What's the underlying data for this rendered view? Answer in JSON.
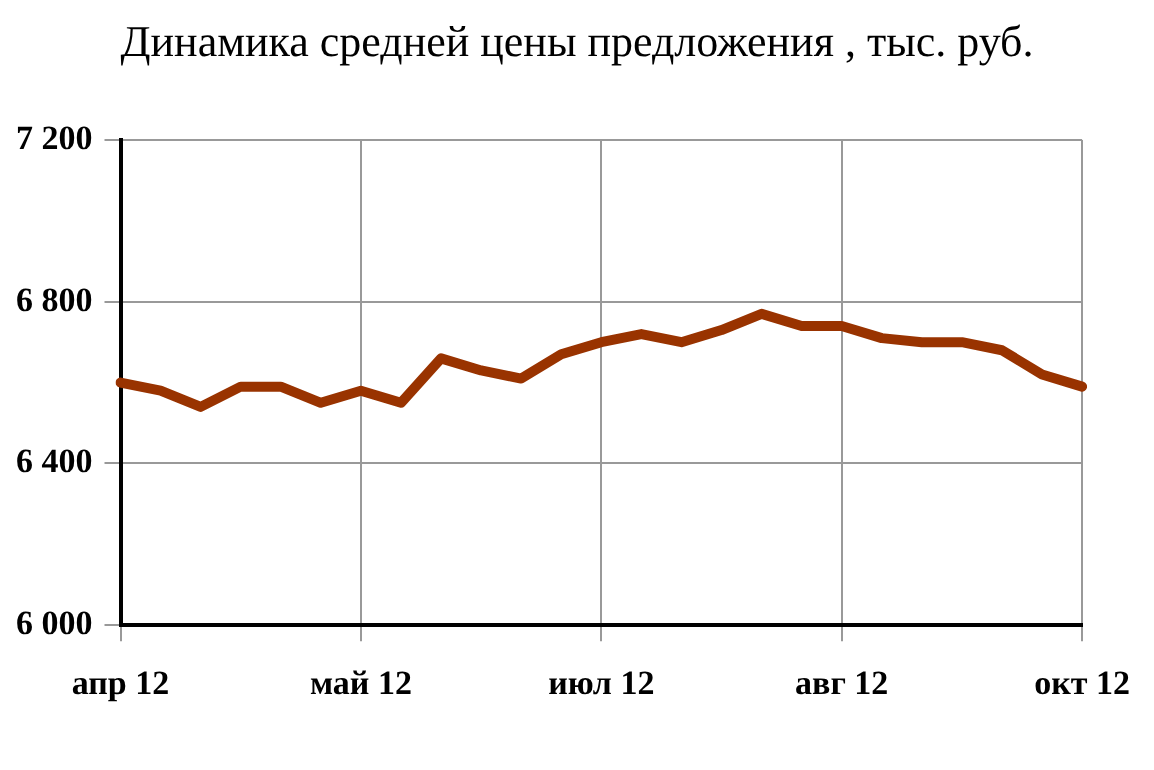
{
  "chart_data": {
    "type": "line",
    "title": "Динамика средней цены предложения , тыс. руб.",
    "categories": [
      "апр 12",
      null,
      null,
      null,
      null,
      null,
      "май 12",
      null,
      null,
      null,
      null,
      null,
      "июл 12",
      null,
      null,
      null,
      null,
      null,
      "авг 12",
      null,
      null,
      null,
      null,
      null,
      "окт 12"
    ],
    "series": [
      {
        "color": "#993300",
        "values": [
          6600,
          6580,
          6540,
          6590,
          6590,
          6550,
          6580,
          6550,
          6660,
          6630,
          6610,
          6670,
          6700,
          6720,
          6700,
          6730,
          6770,
          6740,
          6740,
          6710,
          6700,
          6700,
          6680,
          6620,
          6590
        ]
      }
    ],
    "ylim": [
      6000,
      7200
    ],
    "yticks": [
      {
        "value": 6000,
        "label": "6 000"
      },
      {
        "value": 6400,
        "label": "6 400"
      },
      {
        "value": 6800,
        "label": "6 800"
      },
      {
        "value": 7200,
        "label": "7 200"
      }
    ],
    "grid": true,
    "legend": false,
    "marker": "none",
    "line_style": "solid"
  }
}
